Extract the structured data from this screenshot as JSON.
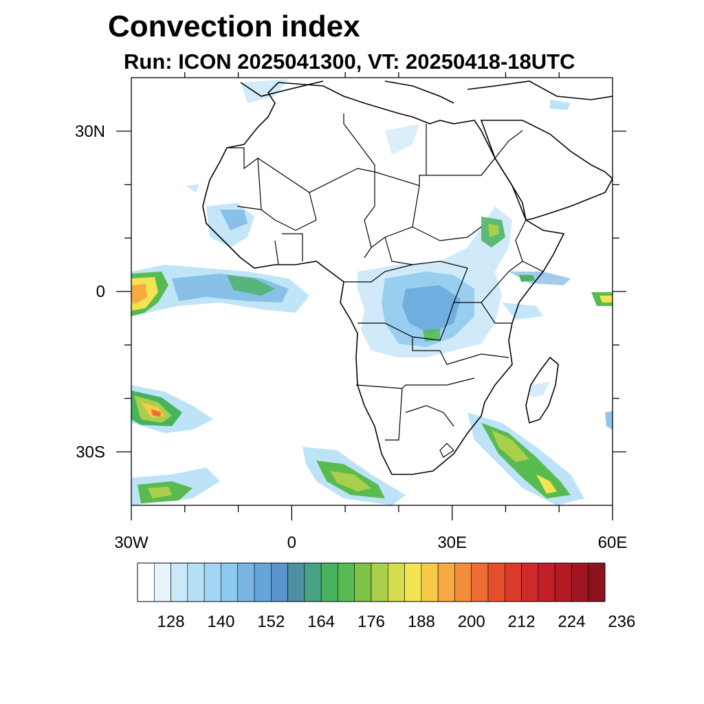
{
  "title": "Convection index",
  "subtitle": "Run: ICON 2025041300,  VT: 20250418-18UTC",
  "map": {
    "lon_range": [
      -30,
      60
    ],
    "lat_range": [
      -40,
      40
    ],
    "x_ticks": [
      {
        "value": -30,
        "label": "30W"
      },
      {
        "value": 0,
        "label": "0"
      },
      {
        "value": 30,
        "label": "30E"
      },
      {
        "value": 60,
        "label": "60E"
      }
    ],
    "y_ticks": [
      {
        "value": 30,
        "label": "30N"
      },
      {
        "value": 0,
        "label": "0"
      },
      {
        "value": -30,
        "label": "30S"
      }
    ],
    "minor_x_ticks": [
      -20,
      -10,
      10,
      20,
      40,
      50
    ],
    "minor_y_ticks": [
      20,
      10,
      -10,
      -20
    ]
  },
  "colorbar": {
    "colors": [
      "#ffffff",
      "#e6f4fc",
      "#cbe8f8",
      "#b5e0f6",
      "#a2d6f4",
      "#8ecaef",
      "#79b6e4",
      "#65a5db",
      "#5a94cc",
      "#4d8fa3",
      "#46a383",
      "#48b25f",
      "#58bb4f",
      "#7ec24a",
      "#a9cf4c",
      "#d3dd4f",
      "#f3e454",
      "#f8ca4c",
      "#f7aa44",
      "#f58e3c",
      "#ee6d34",
      "#e4502c",
      "#da3a2a",
      "#cf2a2b",
      "#c22028",
      "#b21a24",
      "#a01620",
      "#8c131c"
    ],
    "labels": [
      "128",
      "140",
      "152",
      "164",
      "176",
      "188",
      "200",
      "212",
      "224",
      "236"
    ]
  },
  "colors": {
    "light_blue": "#b5e0f6",
    "blue": "#65a5db",
    "green": "#48b25f",
    "yellow": "#f3e454",
    "orange": "#f58e3c",
    "red": "#cf2a2b"
  }
}
